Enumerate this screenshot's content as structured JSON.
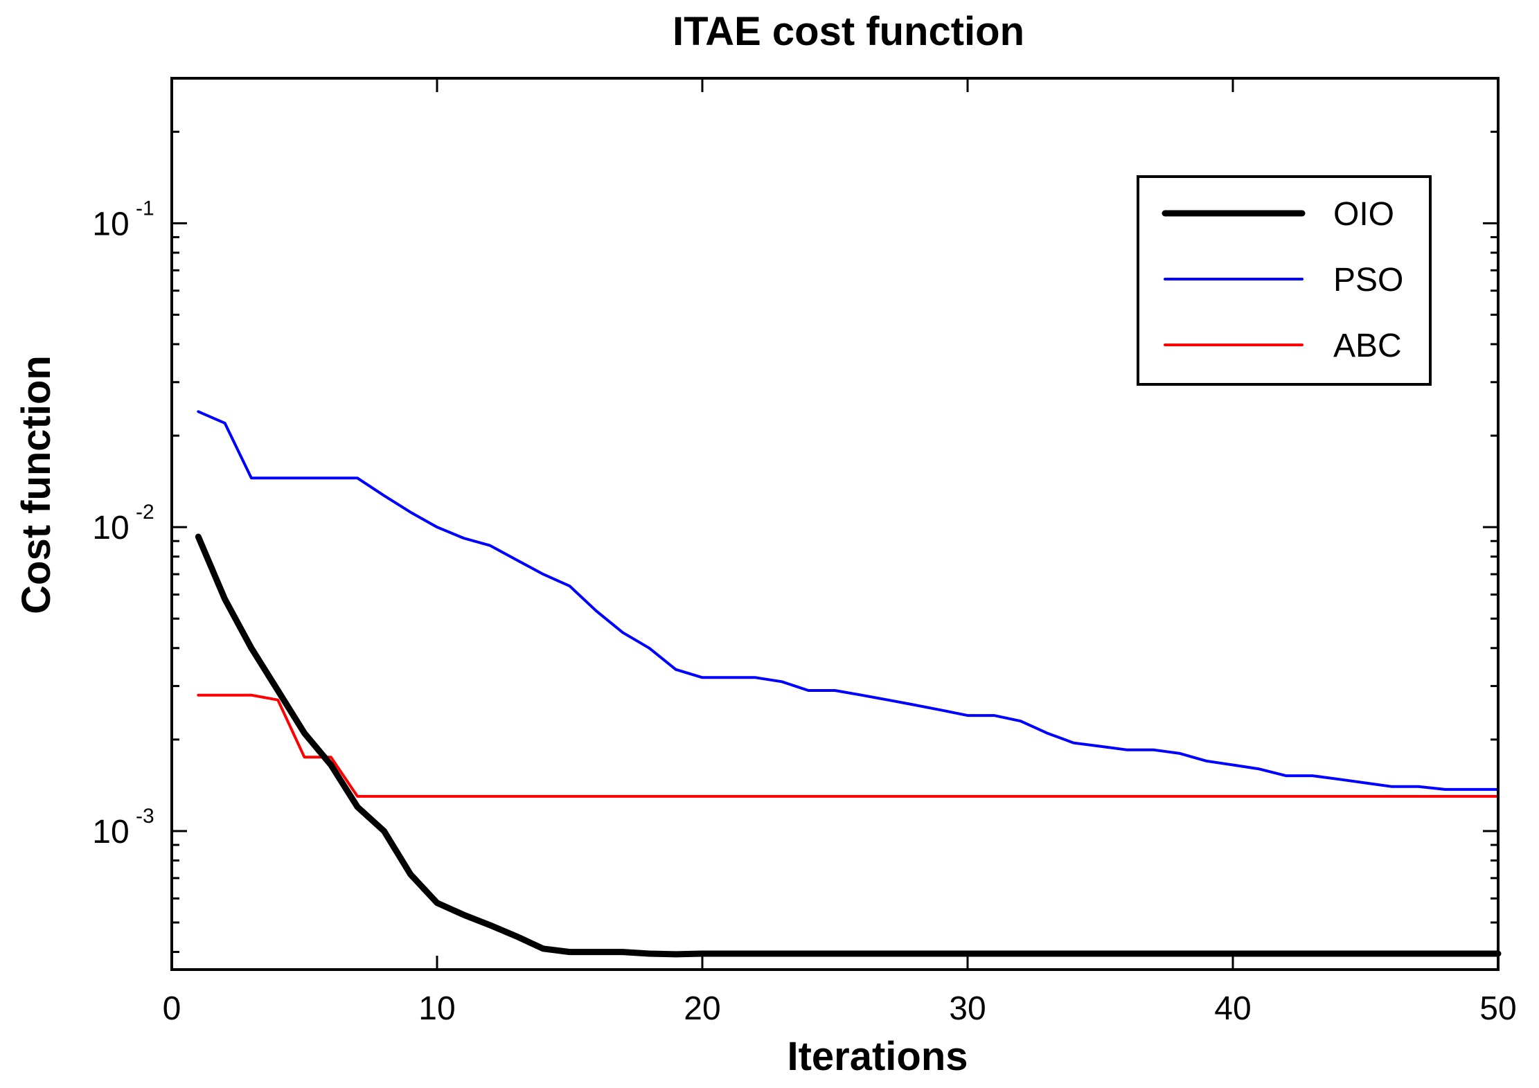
{
  "chart_data": {
    "type": "line",
    "title": "ITAE cost function",
    "xlabel": "Iterations",
    "ylabel": "Cost function",
    "xlim": [
      0,
      50
    ],
    "ylim": [
      0.00035,
      0.3
    ],
    "yscale": "log",
    "x_ticks": [
      0,
      10,
      20,
      30,
      40,
      50
    ],
    "y_ticks": [
      {
        "value": 0.001,
        "base": "10",
        "exp": "-3"
      },
      {
        "value": 0.01,
        "base": "10",
        "exp": "-2"
      },
      {
        "value": 0.1,
        "base": "10",
        "exp": "-1"
      }
    ],
    "legend_position": "top-right",
    "series": [
      {
        "name": "OIO",
        "color": "#000000",
        "width": 9,
        "x": [
          1,
          2,
          3,
          4,
          5,
          6,
          7,
          8,
          9,
          10,
          11,
          12,
          13,
          14,
          15,
          16,
          17,
          18,
          19,
          20,
          25,
          30,
          35,
          40,
          45,
          50
        ],
        "values": [
          0.0093,
          0.0058,
          0.004,
          0.0029,
          0.0021,
          0.00165,
          0.0012,
          0.001,
          0.00072,
          0.00058,
          0.00053,
          0.00049,
          0.00045,
          0.00041,
          0.0004,
          0.0004,
          0.0004,
          0.000395,
          0.000393,
          0.000395,
          0.000395,
          0.000395,
          0.000395,
          0.000395,
          0.000395,
          0.000395
        ]
      },
      {
        "name": "PSO",
        "color": "#0000ff",
        "width": 4,
        "x": [
          1,
          2,
          3,
          4,
          5,
          6,
          7,
          8,
          9,
          10,
          11,
          12,
          13,
          14,
          15,
          16,
          17,
          18,
          19,
          20,
          21,
          22,
          23,
          24,
          25,
          26,
          27,
          28,
          29,
          30,
          31,
          32,
          33,
          34,
          35,
          36,
          37,
          38,
          39,
          40,
          41,
          42,
          43,
          44,
          45,
          46,
          47,
          48,
          49,
          50
        ],
        "values": [
          0.024,
          0.022,
          0.0145,
          0.0145,
          0.0145,
          0.0145,
          0.0145,
          0.0127,
          0.0112,
          0.01,
          0.0092,
          0.0087,
          0.0078,
          0.007,
          0.0064,
          0.0053,
          0.0045,
          0.004,
          0.0034,
          0.0032,
          0.0032,
          0.0032,
          0.0031,
          0.0029,
          0.0029,
          0.0028,
          0.0027,
          0.0026,
          0.0025,
          0.0024,
          0.0024,
          0.0023,
          0.0021,
          0.00195,
          0.0019,
          0.00185,
          0.00185,
          0.0018,
          0.0017,
          0.00165,
          0.0016,
          0.00152,
          0.00152,
          0.00148,
          0.00144,
          0.0014,
          0.0014,
          0.00137,
          0.00137,
          0.00137
        ]
      },
      {
        "name": "ABC",
        "color": "#ff0000",
        "width": 4,
        "x": [
          1,
          2,
          3,
          4,
          5,
          6,
          7,
          8,
          10,
          20,
          30,
          40,
          50
        ],
        "values": [
          0.0028,
          0.0028,
          0.0028,
          0.0027,
          0.00175,
          0.00175,
          0.0013,
          0.0013,
          0.0013,
          0.0013,
          0.0013,
          0.0013,
          0.0013
        ]
      }
    ]
  }
}
